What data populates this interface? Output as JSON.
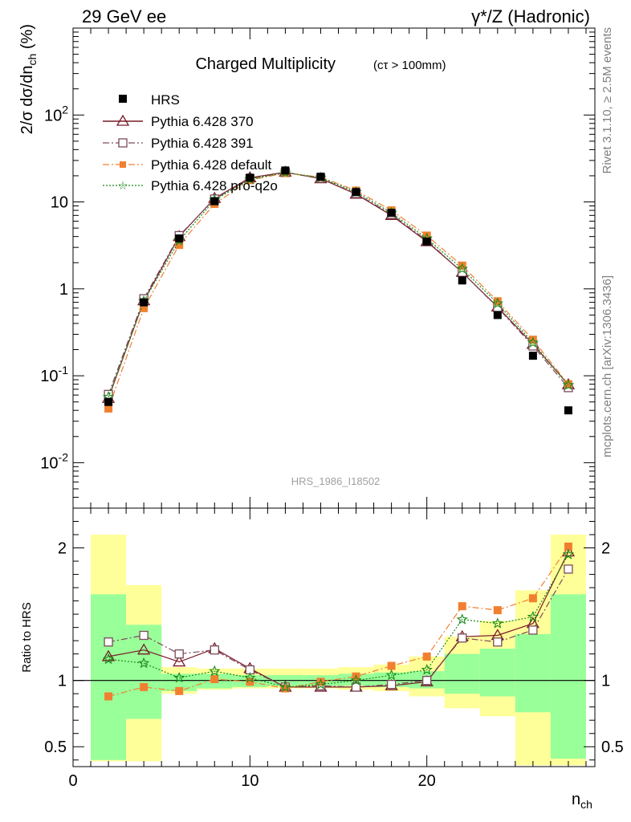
{
  "header": {
    "energy_label": "29 GeV ee",
    "process_label": "γ*/Z (Hadronic)"
  },
  "side_text": {
    "rivet": "Rivet 3.1.10, ≥ 2.5M events",
    "site": "mcplots.cern.ch [arXiv:1306.3436]"
  },
  "chart_data": [
    {
      "type": "scatter",
      "title": "Charged Multiplicity",
      "subtitle": "(cτ > 100mm)",
      "watermark": "HRS_1986_I18502",
      "ylabel": "2/σ dσ/dn_ch (%)",
      "xlabel": "n_ch",
      "xlim": [
        0,
        29.5
      ],
      "ylim": [
        0.003,
        1000
      ],
      "yscale": "log",
      "y_ticks": [
        "10^-2",
        "10^-1",
        "1",
        "10",
        "10^2"
      ],
      "x": [
        2,
        4,
        6,
        8,
        10,
        12,
        14,
        16,
        18,
        20,
        22,
        24,
        26,
        28
      ],
      "series": [
        {
          "name": "HRS",
          "color": "#000000",
          "marker": "square-filled",
          "values": [
            0.05,
            0.7,
            3.8,
            10.2,
            19,
            23,
            19.5,
            13,
            7.5,
            3.5,
            1.25,
            0.5,
            0.17,
            0.04
          ]
        },
        {
          "name": "Pythia 6.428 370",
          "color": "#7a1a28",
          "marker": "triangle-open",
          "dash": "solid",
          "values": [
            0.055,
            0.73,
            4.0,
            11.0,
            19.0,
            22.0,
            18.5,
            12.3,
            7.0,
            3.5,
            1.55,
            0.62,
            0.23,
            0.079
          ]
        },
        {
          "name": "Pythia 6.428 391",
          "color": "#7a4a5a",
          "marker": "square-open",
          "dash": "dashdot",
          "values": [
            0.061,
            0.77,
            4.1,
            10.8,
            18.5,
            21.8,
            18.7,
            12.5,
            7.2,
            3.6,
            1.55,
            0.61,
            0.22,
            0.073
          ]
        },
        {
          "name": "Pythia 6.428 default",
          "color": "#f08030",
          "marker": "square-filled",
          "dash": "dashdot",
          "values": [
            0.042,
            0.6,
            3.2,
            9.5,
            17.8,
            21.5,
            19.3,
            13.5,
            8.0,
            4.1,
            1.85,
            0.72,
            0.26,
            0.08
          ]
        },
        {
          "name": "Pythia 6.428 pro-q2o",
          "color": "#1a8a1a",
          "marker": "star",
          "dash": "dotted",
          "values": [
            0.057,
            0.72,
            3.6,
            10.5,
            18.2,
            21.8,
            19.0,
            13.0,
            7.5,
            3.8,
            1.7,
            0.68,
            0.24,
            0.078
          ]
        }
      ]
    },
    {
      "type": "line",
      "ylabel": "Ratio to HRS",
      "xlabel": "n_ch",
      "xlim": [
        0,
        29.5
      ],
      "ylim": [
        0.35,
        2.3
      ],
      "x_ticks": [
        "0",
        "10",
        "20"
      ],
      "y_ticks": [
        "0.5",
        "1",
        "2"
      ],
      "uncertainty_bands": {
        "bin_edges": [
          1,
          3,
          5,
          7,
          9,
          11,
          13,
          15,
          17,
          19,
          21,
          23,
          25,
          27,
          29
        ],
        "inner_low": [
          0.4,
          0.71,
          0.92,
          0.94,
          0.95,
          0.96,
          0.96,
          0.96,
          0.95,
          0.94,
          0.9,
          0.88,
          0.76,
          0.41
        ],
        "inner_high": [
          1.65,
          1.42,
          1.05,
          1.05,
          1.04,
          1.04,
          1.04,
          1.05,
          1.06,
          1.07,
          1.2,
          1.24,
          1.35,
          1.65
        ],
        "outer_low": [
          0.39,
          0.39,
          0.9,
          0.93,
          0.94,
          0.94,
          0.94,
          0.93,
          0.92,
          0.88,
          0.79,
          0.73,
          0.36,
          0.36
        ],
        "outer_high": [
          2.1,
          1.72,
          1.1,
          1.09,
          1.09,
          1.09,
          1.09,
          1.1,
          1.12,
          1.18,
          1.33,
          1.45,
          1.68,
          2.1
        ],
        "inner_color": "#99ff99",
        "outer_color": "#ffff99"
      },
      "reference_line": 1,
      "series": [
        {
          "name": "Pythia 6.428 370",
          "color": "#7a1a28",
          "marker": "triangle-open",
          "dash": "solid",
          "values": [
            1.18,
            1.23,
            1.14,
            1.24,
            1.09,
            0.95,
            0.95,
            0.95,
            0.96,
            0.99,
            1.33,
            1.34,
            1.43,
            1.97
          ]
        },
        {
          "name": "Pythia 6.428 391",
          "color": "#7a4a5a",
          "marker": "square-open",
          "dash": "dashdot",
          "values": [
            1.29,
            1.34,
            1.2,
            1.23,
            1.08,
            0.95,
            0.96,
            0.95,
            0.97,
            1.0,
            1.32,
            1.29,
            1.38,
            1.84
          ]
        },
        {
          "name": "Pythia 6.428 default",
          "color": "#f08030",
          "marker": "square-filled",
          "dash": "dashdot",
          "values": [
            0.88,
            0.95,
            0.92,
            1.01,
            0.99,
            0.94,
            0.99,
            1.03,
            1.11,
            1.18,
            1.56,
            1.53,
            1.62,
            2.01
          ]
        },
        {
          "name": "Pythia 6.428 pro-q2o",
          "color": "#1a8a1a",
          "marker": "star",
          "dash": "dotted",
          "values": [
            1.16,
            1.13,
            1.02,
            1.07,
            1.02,
            0.95,
            0.97,
            1.0,
            1.04,
            1.08,
            1.46,
            1.43,
            1.48,
            1.95
          ]
        }
      ]
    }
  ]
}
